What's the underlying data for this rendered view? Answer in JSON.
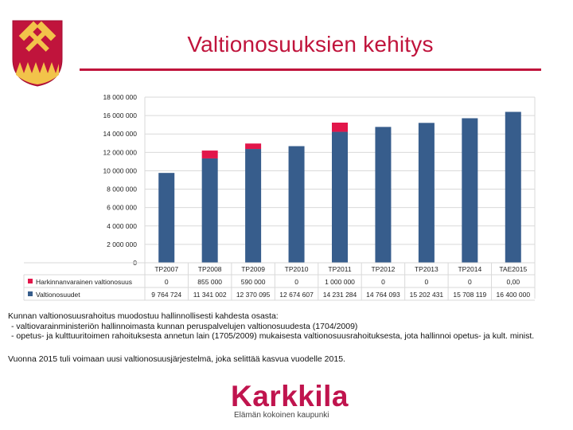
{
  "page": {
    "title": "Valtionosuuksien kehitys"
  },
  "colors": {
    "accent": "#c0143c",
    "series_base": "#375d8c",
    "series_extra": "#e2164a",
    "grid": "#d9d9d9"
  },
  "chart_data": {
    "type": "bar",
    "stacked": true,
    "categories": [
      "TP2007",
      "TP2008",
      "TP2009",
      "TP2010",
      "TP2011",
      "TP2012",
      "TP2013",
      "TP2014",
      "TAE2015"
    ],
    "series": [
      {
        "name": "Valtionosuudet",
        "color": "#375d8c",
        "values": [
          9764724,
          11341002,
          12370095,
          12674607,
          14231284,
          14764093,
          15202431,
          15708119,
          16400000
        ],
        "labels": [
          "9 764 724",
          "11 341 002",
          "12 370 095",
          "12 674 607",
          "14 231 284",
          "14 764 093",
          "15 202 431",
          "15 708 119",
          "16 400 000"
        ]
      },
      {
        "name": "Harkinnanvarainen valtionosuus",
        "color": "#e2164a",
        "values": [
          0,
          855000,
          590000,
          0,
          1000000,
          0,
          0,
          0,
          0
        ],
        "labels": [
          "0",
          "855 000",
          "590 000",
          "0",
          "1 000 000",
          "0",
          "0",
          "0",
          "0,00"
        ]
      }
    ],
    "ylim": [
      0,
      18000000
    ],
    "yticks": [
      0,
      2000000,
      4000000,
      6000000,
      8000000,
      10000000,
      12000000,
      14000000,
      16000000,
      18000000
    ],
    "ytick_labels": [
      "0",
      "2 000 000",
      "4 000 000",
      "6 000 000",
      "8 000 000",
      "10 000 000",
      "12 000 000",
      "14 000 000",
      "16 000 000",
      "18 000 000"
    ],
    "grid": true,
    "legend": "data-table-below"
  },
  "description": {
    "line1": "Kunnan valtionosuusrahoitus muodostuu hallinnollisesti kahdesta osasta:",
    "line2": "- valtiovarainministeriön hallinnoimasta kunnan peruspalvelujen valtionosuudesta (1704/2009)",
    "line3": "- opetus- ja kulttuuritoimen rahoituksesta annetun lain (1705/2009) mukaisesta valtionosuusrahoituksesta, jota hallinnoi opetus- ja kult. minist.",
    "line4": "Vuonna 2015 tuli voimaan uusi valtionosuusjärjestelmä, joka selittää kasvua vuodelle 2015."
  },
  "logo": {
    "word": "Karkkila",
    "tagline": "Elämän kokoinen kaupunki"
  }
}
